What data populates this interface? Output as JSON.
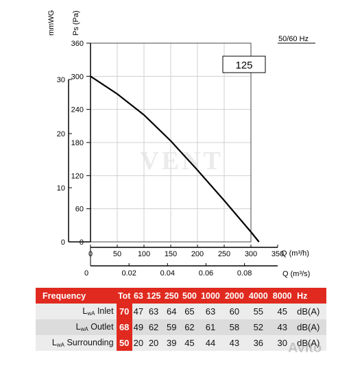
{
  "chart_data": {
    "type": "line",
    "title": "",
    "model_label": "125",
    "frequency_note": "50/60 Hz",
    "ylabel_primary": "Ps (Pa)",
    "ylabel_secondary": "mmWG",
    "xlabel_primary": "Q (m³/h)",
    "xlabel_secondary": "Q (m³/s)",
    "ylim": [
      0,
      360
    ],
    "xlim": [
      0,
      350
    ],
    "y_ticks": [
      "0",
      "60",
      "120",
      "180",
      "240",
      "300",
      "360"
    ],
    "y2_ticks": [
      "0",
      "10",
      "20",
      "30"
    ],
    "x_ticks": [
      "0",
      "50",
      "100",
      "150",
      "200",
      "250",
      "300",
      "350"
    ],
    "x2_ticks": [
      "0",
      "0.02",
      "0.04",
      "0.06",
      "0.08"
    ],
    "grid": true,
    "series": [
      {
        "x": [
          0,
          50,
          100,
          150,
          200,
          250,
          300,
          315
        ],
        "y": [
          300,
          268,
          230,
          183,
          130,
          75,
          18,
          0
        ]
      }
    ]
  },
  "watermark_center": "VENT",
  "watermark_corner": "Avito",
  "table": {
    "header": {
      "label": "Frequency",
      "tot": "Tot",
      "bands": [
        "63",
        "125",
        "250",
        "500",
        "1000",
        "2000",
        "4000",
        "8000"
      ],
      "unit": "Hz"
    },
    "rows": [
      {
        "label_main": "L",
        "label_sub": "wA",
        "label_rest": " Inlet",
        "tot": "70",
        "values": [
          "47",
          "63",
          "64",
          "65",
          "63",
          "60",
          "55",
          "45"
        ],
        "unit": "dB(A)"
      },
      {
        "label_main": "L",
        "label_sub": "wA",
        "label_rest": " Outlet",
        "tot": "68",
        "values": [
          "49",
          "62",
          "59",
          "62",
          "61",
          "58",
          "52",
          "43"
        ],
        "unit": "dB(A)"
      },
      {
        "label_main": "L",
        "label_sub": "wA",
        "label_rest": " Surrounding",
        "tot": "50",
        "values": [
          "20",
          "20",
          "39",
          "45",
          "44",
          "43",
          "36",
          "30"
        ],
        "unit": "dB(A)"
      }
    ]
  },
  "colors": {
    "accent_red": "#e02a1f",
    "curve": "#000000",
    "grid": "#cfcfcf"
  }
}
